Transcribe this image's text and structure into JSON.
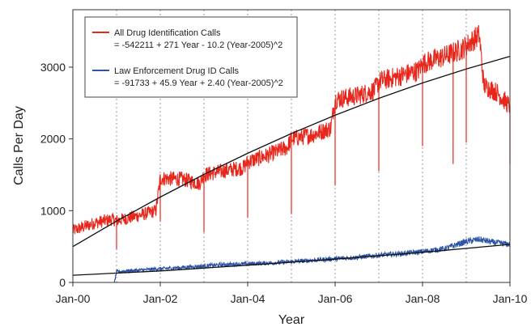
{
  "chart_data": {
    "type": "line",
    "title": "",
    "xlabel": "Year",
    "ylabel": "Calls Per Day",
    "xlim": [
      2000,
      2010
    ],
    "ylim": [
      0,
      3800
    ],
    "x_ticks": [
      {
        "value": 2000,
        "label": "Jan-00"
      },
      {
        "value": 2002,
        "label": "Jan-02"
      },
      {
        "value": 2004,
        "label": "Jan-04"
      },
      {
        "value": 2006,
        "label": "Jan-06"
      },
      {
        "value": 2008,
        "label": "Jan-08"
      },
      {
        "value": 2010,
        "label": "Jan-10"
      }
    ],
    "y_ticks": [
      {
        "value": 0,
        "label": "0"
      },
      {
        "value": 1000,
        "label": "1000"
      },
      {
        "value": 2000,
        "label": "2000"
      },
      {
        "value": 3000,
        "label": "3000"
      }
    ],
    "year_gridlines": [
      2001,
      2002,
      2003,
      2004,
      2005,
      2006,
      2007,
      2008,
      2009
    ],
    "legend_position": "top-left",
    "series": [
      {
        "name": "All Drug Identification Calls",
        "equation": "= -542211 + 271 Year - 10.2 (Year-2005)^2",
        "color": "#e8261b",
        "x": [
          2000.0,
          2000.5,
          2000.9,
          2001.0,
          2001.5,
          2001.9,
          2002.0,
          2002.5,
          2002.9,
          2003.0,
          2003.5,
          2003.9,
          2004.0,
          2004.5,
          2004.9,
          2005.0,
          2005.5,
          2005.9,
          2006.0,
          2006.5,
          2006.9,
          2007.0,
          2007.5,
          2007.9,
          2008.0,
          2008.5,
          2008.9,
          2009.0,
          2009.3,
          2009.4,
          2009.7,
          2010.0
        ],
        "y": [
          720,
          830,
          880,
          860,
          930,
          1000,
          1450,
          1440,
          1380,
          1500,
          1560,
          1600,
          1680,
          1780,
          1880,
          2000,
          2060,
          2150,
          2550,
          2600,
          2680,
          2800,
          2880,
          2950,
          3050,
          3150,
          3250,
          3300,
          3450,
          2750,
          2650,
          2450
        ],
        "dips": [
          {
            "x": 2001.0,
            "y": 460
          },
          {
            "x": 2002.0,
            "y": 850
          },
          {
            "x": 2003.0,
            "y": 700
          },
          {
            "x": 2004.0,
            "y": 900
          },
          {
            "x": 2005.0,
            "y": 950
          },
          {
            "x": 2006.0,
            "y": 1350
          },
          {
            "x": 2007.0,
            "y": 1550
          },
          {
            "x": 2008.0,
            "y": 1900
          },
          {
            "x": 2008.7,
            "y": 1650
          },
          {
            "x": 2009.0,
            "y": 1950
          },
          {
            "x": 2010.0,
            "y": 1650
          }
        ]
      },
      {
        "name": "Law Enforcement Drug ID Calls",
        "equation": "= -91733 + 45.9 Year + 2.40 (Year-2005)^2",
        "color": "#2e54a6",
        "x": [
          2000.0,
          2000.5,
          2000.95,
          2001.0,
          2001.5,
          2002.0,
          2002.5,
          2003.0,
          2003.5,
          2004.0,
          2004.5,
          2005.0,
          2005.5,
          2006.0,
          2006.5,
          2007.0,
          2007.5,
          2008.0,
          2008.5,
          2009.0,
          2009.3,
          2009.6,
          2010.0
        ],
        "y": [
          0,
          0,
          0,
          150,
          170,
          190,
          210,
          230,
          250,
          260,
          270,
          290,
          310,
          330,
          350,
          380,
          400,
          430,
          470,
          570,
          600,
          560,
          530
        ]
      }
    ],
    "trend_lines": [
      {
        "name": "All Drug Identification Calls fit",
        "color": "#111111",
        "x": [
          2000,
          2001,
          2002,
          2003,
          2004,
          2005,
          2006,
          2007,
          2008,
          2009,
          2010
        ],
        "y": [
          500,
          855,
          1190,
          1505,
          1800,
          2075,
          2330,
          2565,
          2780,
          2975,
          3150
        ]
      },
      {
        "name": "Law Enforcement Drug ID Calls fit",
        "color": "#111111",
        "x": [
          2000,
          2002,
          2004,
          2006,
          2008,
          2010
        ],
        "y": [
          100,
          160,
          240,
          325,
          420,
          530
        ]
      }
    ]
  }
}
